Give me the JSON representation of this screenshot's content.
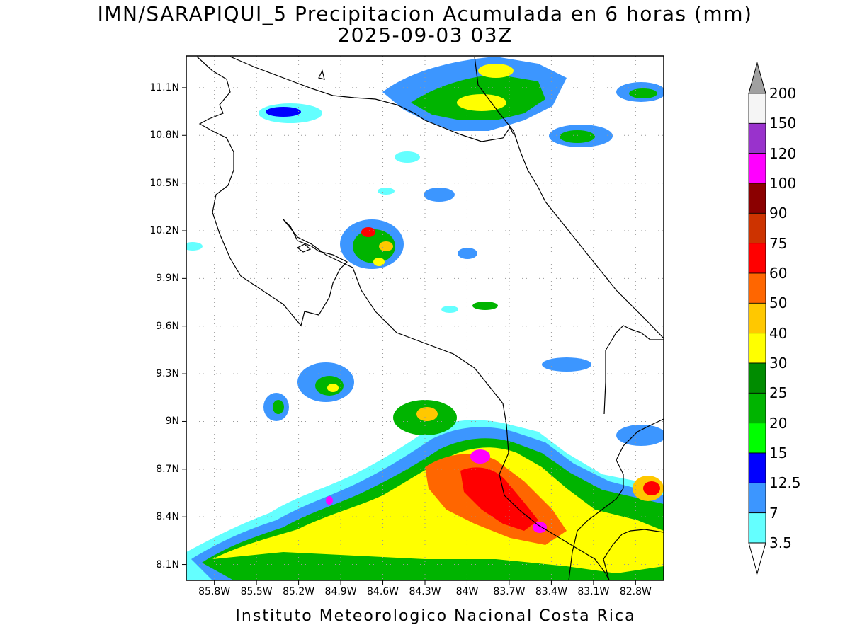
{
  "title": {
    "line1": "IMN/SARAPIQUI_5 Precipitacion Acumulada en 6 horas (mm)",
    "line2": "2025-09-03 03Z"
  },
  "footer": "Instituto Meteorologico Nacional Costa Rica",
  "map": {
    "lon_range": [
      -86.0,
      -82.6
    ],
    "lat_range": [
      8.0,
      11.3
    ],
    "lat_ticks": [
      "11.1N",
      "10.8N",
      "10.5N",
      "10.2N",
      "9.9N",
      "9.6N",
      "9.3N",
      "9N",
      "8.7N",
      "8.4N",
      "8.1N"
    ],
    "lat_values": [
      11.1,
      10.8,
      10.5,
      10.2,
      9.9,
      9.6,
      9.3,
      9.0,
      8.7,
      8.4,
      8.1
    ],
    "lon_ticks": [
      "85.8W",
      "85.5W",
      "85.2W",
      "84.9W",
      "84.6W",
      "84.3W",
      "84W",
      "83.7W",
      "83.4W",
      "83.1W",
      "82.8W"
    ],
    "lon_values": [
      -85.8,
      -85.5,
      -85.2,
      -84.9,
      -84.6,
      -84.3,
      -84.0,
      -83.7,
      -83.4,
      -83.1,
      -82.8
    ],
    "grid": "dotted"
  },
  "legend": {
    "labels": [
      "200",
      "150",
      "120",
      "100",
      "90",
      "75",
      "60",
      "50",
      "40",
      "30",
      "25",
      "20",
      "15",
      "12.5",
      "7",
      "3.5"
    ],
    "colors": [
      "#a0a0a0",
      "#f5f5f5",
      "#9932cc",
      "#ff00ff",
      "#8b0000",
      "#cd3300",
      "#ff0000",
      "#ff6600",
      "#ffc800",
      "#ffff00",
      "#008c00",
      "#00b400",
      "#00ff00",
      "#0000ff",
      "#3c96ff",
      "#64ffff",
      "#ffffff"
    ]
  }
}
